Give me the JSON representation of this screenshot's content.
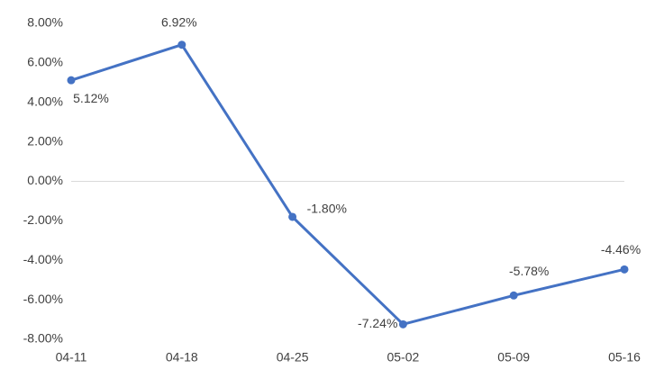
{
  "chart_data": {
    "type": "line",
    "categories": [
      "04-11",
      "04-18",
      "04-25",
      "05-02",
      "05-09",
      "05-16"
    ],
    "series": [
      {
        "color": "#4472c4",
        "values": [
          5.12,
          6.92,
          -1.8,
          -7.24,
          -5.78,
          -4.46
        ],
        "value_labels": [
          "5.12%",
          "6.92%",
          "-1.80%",
          "-7.24%",
          "-5.78%",
          "-4.46%"
        ]
      }
    ],
    "ylim": [
      -8,
      8
    ],
    "yticks": [
      {
        "value": 8,
        "label": "8.00%"
      },
      {
        "value": 6,
        "label": "6.00%"
      },
      {
        "value": 4,
        "label": "4.00%"
      },
      {
        "value": 2,
        "label": "2.00%"
      },
      {
        "value": 0,
        "label": "0.00%"
      },
      {
        "value": -2,
        "label": "-2.00%"
      },
      {
        "value": -4,
        "label": "-4.00%"
      },
      {
        "value": -6,
        "label": "-6.00%"
      },
      {
        "value": -8,
        "label": "-8.00%"
      }
    ],
    "zero_line": true
  }
}
